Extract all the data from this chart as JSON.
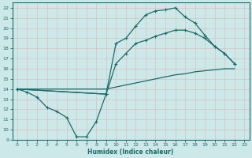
{
  "bg_color": "#cde8e8",
  "grid_color": "#b8d8d8",
  "line_color": "#1a6b6b",
  "xlabel": "Humidex (Indice chaleur)",
  "xlim": [
    -0.5,
    23.5
  ],
  "ylim": [
    9,
    22.5
  ],
  "xticks": [
    0,
    1,
    2,
    3,
    4,
    5,
    6,
    7,
    8,
    9,
    10,
    11,
    12,
    13,
    14,
    15,
    16,
    17,
    18,
    19,
    20,
    21,
    22,
    23
  ],
  "yticks": [
    9,
    10,
    11,
    12,
    13,
    14,
    15,
    16,
    17,
    18,
    19,
    20,
    21,
    22
  ],
  "curve_wavy_x": [
    0,
    1,
    2,
    3,
    4,
    5,
    6,
    7,
    8,
    9
  ],
  "curve_wavy_y": [
    14.0,
    13.7,
    13.2,
    12.2,
    11.8,
    11.2,
    9.3,
    9.3,
    10.8,
    13.5
  ],
  "curve_low_x": [
    0,
    1,
    2,
    3,
    4,
    5,
    6,
    7,
    8,
    9,
    10,
    11,
    12,
    13,
    14,
    15,
    16,
    17,
    18,
    19,
    20,
    21,
    22
  ],
  "curve_low_y": [
    14.0,
    14.0,
    14.0,
    14.0,
    14.0,
    14.0,
    14.0,
    14.0,
    14.0,
    14.0,
    14.2,
    14.4,
    14.6,
    14.8,
    15.0,
    15.2,
    15.4,
    15.5,
    15.7,
    15.8,
    15.9,
    16.0,
    16.0
  ],
  "curve_mid_x": [
    0,
    9,
    10,
    11,
    12,
    13,
    14,
    15,
    16,
    17,
    18,
    19,
    20,
    21,
    22
  ],
  "curve_mid_y": [
    14.0,
    13.5,
    16.5,
    17.5,
    18.5,
    18.8,
    19.2,
    19.5,
    19.8,
    19.8,
    19.5,
    19.0,
    18.2,
    17.5,
    16.5
  ],
  "curve_top_x": [
    0,
    9,
    10,
    11,
    12,
    13,
    14,
    15,
    16,
    17,
    18,
    19,
    20,
    21,
    22
  ],
  "curve_top_y": [
    14.0,
    13.5,
    18.5,
    19.0,
    20.2,
    21.3,
    21.7,
    21.8,
    22.0,
    21.1,
    20.5,
    19.3,
    18.2,
    17.5,
    16.5
  ]
}
